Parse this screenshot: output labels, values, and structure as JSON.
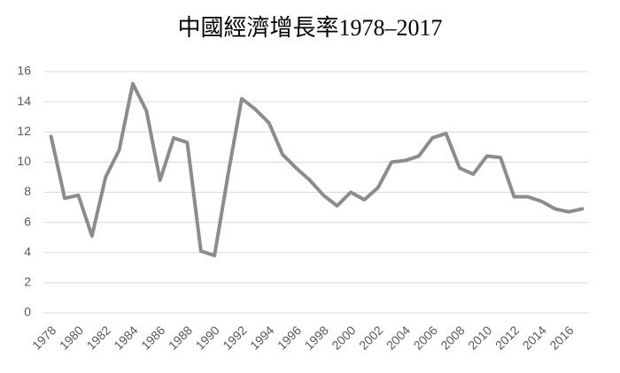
{
  "chart_data": {
    "type": "line",
    "title": "中國經濟增長率1978–2017",
    "categories": [
      "1978",
      null,
      "1980",
      null,
      "1982",
      null,
      "1984",
      null,
      "1986",
      null,
      "1988",
      null,
      "1990",
      null,
      "1992",
      null,
      "1994",
      null,
      "1996",
      null,
      "1998",
      null,
      "2000",
      null,
      "2002",
      null,
      "2004",
      null,
      "2006",
      null,
      "2008",
      null,
      "2010",
      null,
      "2012",
      null,
      "2014",
      null,
      "2016",
      null
    ],
    "values": [
      11.7,
      7.6,
      7.8,
      5.1,
      9.0,
      10.8,
      15.2,
      13.4,
      8.8,
      11.6,
      11.3,
      4.1,
      3.8,
      9.2,
      14.2,
      13.5,
      12.6,
      10.5,
      9.6,
      8.8,
      7.8,
      7.1,
      8.0,
      7.5,
      8.3,
      10.0,
      10.1,
      10.4,
      11.6,
      11.9,
      9.6,
      9.2,
      10.4,
      10.3,
      7.7,
      7.7,
      7.4,
      6.9,
      6.7,
      6.9
    ],
    "color": "#8c8c8c",
    "ylim": [
      0,
      16
    ],
    "yticks": [
      0,
      2,
      4,
      6,
      8,
      10,
      12,
      14,
      16
    ],
    "grid": true
  }
}
